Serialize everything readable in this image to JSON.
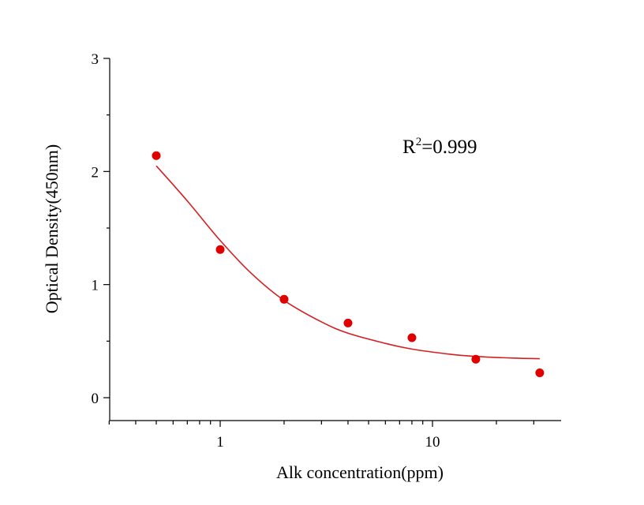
{
  "chart_data": {
    "type": "scatter",
    "xlabel": "Alk concentration(ppm)",
    "ylabel": "Optical Density(450nm)",
    "xscale": "log",
    "xlim": [
      0.3,
      35
    ],
    "ylim": [
      -0.2,
      3
    ],
    "x_ticks": [
      1,
      10
    ],
    "y_ticks": [
      0,
      1,
      2,
      3
    ],
    "grid": false,
    "colors": {
      "points": "#e00000",
      "curve": "#d42020",
      "axes": "#000000"
    },
    "annotation": {
      "base": "R",
      "sup": "2",
      "rest": "=0.999"
    },
    "points": [
      {
        "x": 0.5,
        "y": 2.14
      },
      {
        "x": 1,
        "y": 1.31
      },
      {
        "x": 2,
        "y": 0.87
      },
      {
        "x": 4,
        "y": 0.66
      },
      {
        "x": 8,
        "y": 0.53
      },
      {
        "x": 16,
        "y": 0.34
      },
      {
        "x": 32,
        "y": 0.22
      }
    ],
    "fit_curve": [
      {
        "x": 0.5,
        "y": 2.05
      },
      {
        "x": 0.7,
        "y": 1.74
      },
      {
        "x": 1,
        "y": 1.39
      },
      {
        "x": 1.4,
        "y": 1.1
      },
      {
        "x": 2,
        "y": 0.86
      },
      {
        "x": 3,
        "y": 0.67
      },
      {
        "x": 4,
        "y": 0.57
      },
      {
        "x": 6,
        "y": 0.48
      },
      {
        "x": 8,
        "y": 0.43
      },
      {
        "x": 12,
        "y": 0.385
      },
      {
        "x": 16,
        "y": 0.365
      },
      {
        "x": 24,
        "y": 0.35
      },
      {
        "x": 32,
        "y": 0.345
      }
    ]
  }
}
